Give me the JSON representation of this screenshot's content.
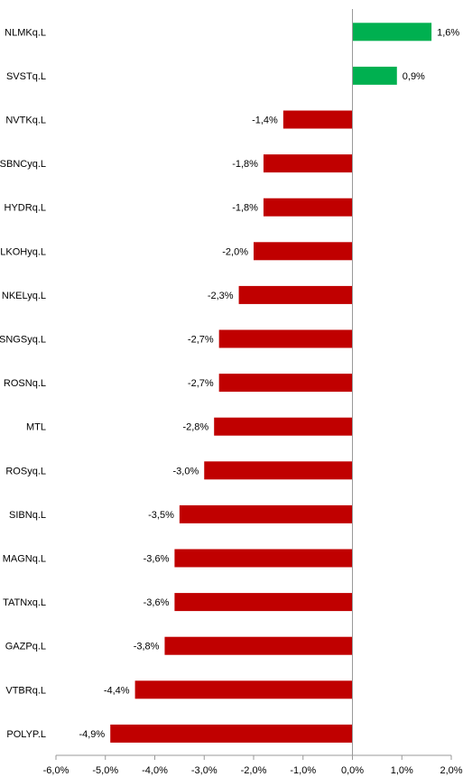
{
  "chart_data": {
    "type": "bar",
    "orientation": "horizontal",
    "categories": [
      "NLMKq.L",
      "SVSTq.L",
      "NVTKq.L",
      "SBNCyq.L",
      "HYDRq.L",
      "LKOHyq.L",
      "NKELyq.L",
      "SNGSyq.L",
      "ROSNq.L",
      "MTL",
      "ROSyq.L",
      "SIBNq.L",
      "MAGNq.L",
      "TATNxq.L",
      "GAZPq.L",
      "VTBRq.L",
      "POLYP.L"
    ],
    "values": [
      1.6,
      0.9,
      -1.4,
      -1.8,
      -1.8,
      -2.0,
      -2.3,
      -2.7,
      -2.7,
      -2.8,
      -3.0,
      -3.5,
      -3.6,
      -3.6,
      -3.8,
      -4.4,
      -4.9
    ],
    "value_labels": [
      "1,6%",
      "0,9%",
      "-1,4%",
      "-1,8%",
      "-1,8%",
      "-2,0%",
      "-2,3%",
      "-2,7%",
      "-2,7%",
      "-2,8%",
      "-3,0%",
      "-3,5%",
      "-3,6%",
      "-3,6%",
      "-3,8%",
      "-4,4%",
      "-4,9%"
    ],
    "xlim": [
      -6.0,
      2.0
    ],
    "x_ticks": [
      -6,
      -5,
      -4,
      -3,
      -2,
      -1,
      0,
      1,
      2
    ],
    "x_tick_labels": [
      "-6,0%",
      "-5,0%",
      "-4,0%",
      "-3,0%",
      "-2,0%",
      "-1,0%",
      "0,0%",
      "1,0%",
      "2,0%"
    ],
    "title": "",
    "xlabel": "",
    "ylabel": "",
    "grid": false,
    "legend": "none",
    "colors": {
      "positive": "#00b050",
      "negative": "#c00000",
      "axis": "#999999"
    }
  }
}
